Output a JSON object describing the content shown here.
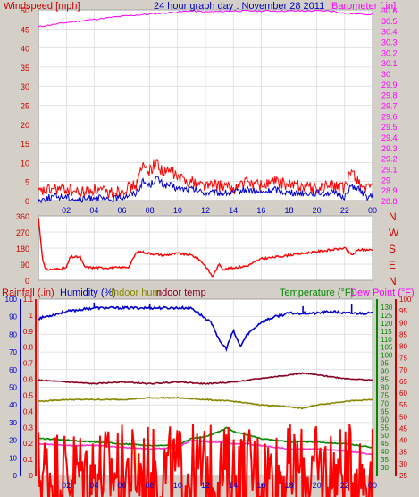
{
  "colors": {
    "frame": "#d4d0c8",
    "plot": "#ffffff",
    "grid": "#c8c8c8",
    "red": "#ff0000",
    "dred": "#cc0000",
    "blue": "#0000cc",
    "magenta": "#ff00ff",
    "darkmagenta": "#ff33cc",
    "green": "#008800",
    "olive": "#888800",
    "maroon": "#880022",
    "yellow": "#dddd00",
    "wind": "#ff0000",
    "gust": "#0000cc"
  },
  "chart_data": [
    {
      "type": "line",
      "title": "24 hour graph day : November 28 2011",
      "y_left_label": "Windspeed [mph]",
      "y_right_label": "Barometer [.in]",
      "x_ticks": [
        "02",
        "04",
        "06",
        "08",
        "10",
        "12",
        "14",
        "16",
        "18",
        "20",
        "22",
        "00"
      ],
      "x_range": [
        0,
        24
      ],
      "y_left_ticks": [
        0,
        5,
        10,
        15,
        20,
        25,
        30,
        35,
        40,
        45,
        50
      ],
      "y_left_range": [
        0,
        50
      ],
      "y_right_ticks": [
        "28.8",
        "28.9",
        "29",
        "29.1",
        "29.2",
        "29.3",
        "29.4",
        "29.5",
        "29.6",
        "29.7",
        "29.8",
        "29.9",
        "30",
        "30.1",
        "30.2",
        "30.3",
        "30.4",
        "30.5",
        "30.6"
      ],
      "y_right_range": [
        28.8,
        30.6
      ],
      "series": [
        {
          "name": "",
          "axis": "right",
          "color": "magenta",
          "x": [
            0,
            2,
            4,
            6,
            8,
            10,
            11,
            12,
            14,
            16,
            18,
            20,
            21,
            22,
            23,
            24
          ],
          "y": [
            30.44,
            30.48,
            30.51,
            30.54,
            30.56,
            30.58,
            30.59,
            30.58,
            30.59,
            30.59,
            30.59,
            30.59,
            30.59,
            30.57,
            30.56,
            30.56
          ]
        },
        {
          "name": "",
          "axis": "left",
          "color": "wind",
          "x": [
            0,
            1,
            2,
            3,
            4,
            5,
            6,
            7,
            7.5,
            8,
            8.5,
            9,
            9.5,
            10,
            11,
            12,
            13,
            14,
            15,
            16,
            17,
            18,
            19,
            20,
            21,
            22,
            22.5,
            23,
            23.5,
            24
          ],
          "y": [
            2,
            3,
            3,
            2,
            3,
            2,
            3,
            4,
            9,
            8,
            10,
            7,
            8,
            6,
            5,
            4,
            4,
            3,
            5,
            4,
            5,
            4,
            4,
            3,
            4,
            3,
            8,
            5,
            3,
            3
          ]
        },
        {
          "name": "",
          "axis": "left",
          "color": "gust",
          "x": [
            0,
            1,
            2,
            3,
            4,
            5,
            6,
            7,
            7.5,
            8,
            8.5,
            9,
            9.5,
            10,
            11,
            12,
            13,
            14,
            15,
            16,
            17,
            18,
            19,
            20,
            21,
            22,
            22.5,
            23,
            23.5,
            24
          ],
          "y": [
            0,
            1,
            1,
            0,
            1,
            0,
            1,
            2,
            5,
            4,
            6,
            4,
            4,
            3,
            3,
            2,
            2,
            2,
            3,
            2,
            3,
            2,
            2,
            2,
            2,
            1,
            4,
            3,
            1,
            1
          ]
        }
      ]
    },
    {
      "type": "line",
      "y_left_label": "",
      "y_right_label": "",
      "x_range": [
        0,
        24
      ],
      "y_left_ticks": [
        0,
        90,
        180,
        270,
        360
      ],
      "y_left_range": [
        0,
        360
      ],
      "y_right_ticks": [
        "N",
        "E",
        "S",
        "W",
        "N"
      ],
      "series": [
        {
          "name": "",
          "axis": "left",
          "color": "red",
          "x": [
            0,
            0.3,
            0.5,
            1,
            2,
            2.3,
            3,
            3.3,
            4,
            6,
            6.5,
            7,
            7.3,
            8,
            9,
            10,
            11,
            11.5,
            12,
            12.5,
            13,
            13.3,
            14,
            15,
            16,
            17,
            18,
            19,
            20,
            21,
            22,
            22.5,
            23,
            24
          ],
          "y": [
            350,
            120,
            60,
            60,
            70,
            130,
            130,
            75,
            70,
            70,
            75,
            150,
            160,
            150,
            140,
            150,
            140,
            120,
            80,
            20,
            90,
            60,
            70,
            80,
            120,
            130,
            140,
            150,
            160,
            170,
            180,
            140,
            170,
            170
          ]
        }
      ]
    },
    {
      "type": "line",
      "labels": [
        "Rainfall (.in)",
        "Humidity (%)",
        "Indoor hum",
        "Indoor temp",
        "Temperature (°F)",
        "Dew Point (°F)"
      ],
      "x_ticks": [
        "02",
        "04",
        "06",
        "08",
        "10",
        "12",
        "14",
        "16",
        "18",
        "20",
        "22",
        "00"
      ],
      "x_range": [
        0,
        24
      ],
      "rain_ticks": [
        "0",
        "0.1",
        "0.2",
        "0.3",
        "0.4",
        "0.5",
        "0.6",
        "0.7",
        "0.8",
        "0.9",
        "1",
        "1.1"
      ],
      "rain_range": [
        0,
        1.1
      ],
      "humidity_ticks": [
        0,
        10,
        20,
        30,
        40,
        50,
        60,
        70,
        80,
        90,
        100
      ],
      "humidity_range": [
        0,
        100
      ],
      "temp_ticks": [
        30,
        35,
        40,
        45,
        50,
        55,
        60,
        65,
        70,
        75,
        80,
        85,
        90,
        95,
        100,
        105,
        110,
        115,
        120,
        125,
        130
      ],
      "temp_range": [
        25,
        135
      ],
      "dew_ticks": [
        25,
        30,
        35,
        40,
        45,
        50,
        55,
        60,
        65,
        70,
        75,
        80,
        85,
        90,
        95,
        100
      ],
      "dew_range": [
        25,
        100
      ],
      "series": [
        {
          "name": "Humidity (%)",
          "axis": "humidity",
          "color": "blue",
          "x": [
            0,
            1,
            2,
            3,
            4,
            5,
            6,
            7,
            8,
            9,
            10,
            11,
            12,
            12.5,
            13,
            13.5,
            14,
            14.5,
            15,
            16,
            17,
            18,
            19,
            20,
            21,
            22,
            23,
            24
          ],
          "y": [
            89,
            91,
            93,
            94,
            95,
            95,
            95,
            95,
            95,
            95,
            95,
            95,
            89,
            86,
            76,
            72,
            82,
            73,
            80,
            87,
            90,
            92,
            92,
            92,
            93,
            92,
            92,
            92
          ],
          "spikes": [
            [
              4,
              98
            ],
            [
              8,
              97
            ],
            [
              19,
              96
            ],
            [
              22.5,
              97
            ]
          ]
        },
        {
          "name": "Indoor temp",
          "axis": "humidity",
          "color": "maroon",
          "x": [
            0,
            2,
            4,
            6,
            8,
            10,
            12,
            14,
            16,
            18,
            19,
            20,
            22,
            24
          ],
          "y": [
            54,
            53,
            52,
            53,
            52,
            53,
            52,
            53,
            55,
            57,
            58,
            57,
            55,
            54
          ]
        },
        {
          "name": "Indoor hum",
          "axis": "humidity",
          "color": "olive",
          "x": [
            0,
            2,
            4,
            6,
            8,
            10,
            12,
            14,
            16,
            18,
            19,
            20,
            22,
            24
          ],
          "y": [
            42,
            43,
            43,
            43,
            44,
            44,
            43,
            42,
            40,
            39,
            38,
            40,
            42,
            43
          ]
        },
        {
          "name": "Temperature (°F)",
          "axis": "humidity",
          "color": "green",
          "x": [
            0,
            2,
            4,
            6,
            8,
            10,
            11,
            12,
            13,
            13.5,
            14,
            15,
            16,
            18,
            20,
            22,
            24
          ],
          "y": [
            21,
            20,
            19,
            18,
            17,
            17,
            21,
            22,
            25,
            27,
            25,
            23,
            21,
            19,
            19,
            18,
            16
          ]
        },
        {
          "name": "Dew Point (°F)",
          "axis": "humidity",
          "color": "darkmagenta",
          "x": [
            0,
            2,
            4,
            6,
            8,
            10,
            11,
            12,
            13,
            14,
            15,
            16,
            18,
            20,
            22,
            24
          ],
          "y": [
            18,
            17,
            17,
            16,
            15,
            16,
            20,
            19,
            19,
            18,
            18,
            17,
            15,
            15,
            14,
            12
          ]
        },
        {
          "name": "Rainfall (.in)",
          "axis": "rain",
          "color": "red",
          "x": [
            0,
            4,
            6,
            8,
            10,
            12,
            14,
            16,
            18,
            20,
            22,
            24
          ],
          "y": [
            0.02,
            0.02,
            0.02,
            0.02,
            0.02,
            0.02,
            0.02,
            0.02,
            0.02,
            0.02,
            0.02,
            0.02
          ]
        }
      ],
      "markers": [
        {
          "x": 7,
          "color": "yellow"
        },
        {
          "x": 16,
          "color": "yellow"
        }
      ]
    }
  ]
}
